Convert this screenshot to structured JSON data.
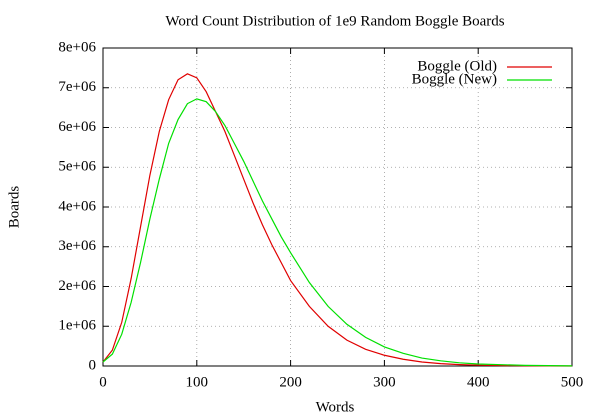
{
  "chart_data": {
    "type": "line",
    "title": "Word Count Distribution of 1e9 Random Boggle Boards",
    "x_label": "Words",
    "y_label": "Boards",
    "x": [
      0,
      10,
      20,
      30,
      40,
      50,
      60,
      70,
      80,
      90,
      100,
      110,
      120,
      130,
      140,
      150,
      160,
      170,
      180,
      190,
      200,
      220,
      240,
      260,
      280,
      300,
      320,
      340,
      360,
      380,
      400,
      450,
      500
    ],
    "series": [
      {
        "name": "Boggle (Old)",
        "color": "#e00000",
        "values": [
          100000,
          400000,
          1100000,
          2200000,
          3500000,
          4800000,
          5900000,
          6700000,
          7200000,
          7350000,
          7250000,
          6900000,
          6400000,
          5900000,
          5300000,
          4700000,
          4100000,
          3550000,
          3050000,
          2600000,
          2150000,
          1500000,
          1000000,
          650000,
          420000,
          270000,
          170000,
          100000,
          60000,
          35000,
          20000,
          5000,
          0
        ]
      },
      {
        "name": "Boggle (New)",
        "color": "#00e000",
        "values": [
          100000,
          300000,
          800000,
          1600000,
          2600000,
          3700000,
          4700000,
          5600000,
          6200000,
          6600000,
          6720000,
          6650000,
          6400000,
          6050000,
          5600000,
          5150000,
          4650000,
          4150000,
          3700000,
          3250000,
          2850000,
          2100000,
          1500000,
          1050000,
          720000,
          480000,
          320000,
          200000,
          130000,
          80000,
          50000,
          15000,
          3000
        ]
      }
    ],
    "xlim": [
      0,
      500
    ],
    "xticks": [
      0,
      100,
      200,
      300,
      400,
      500
    ],
    "ylim": [
      0,
      8000000
    ],
    "yticks": [
      0,
      {
        "value": 1000000,
        "label": "1e+06"
      },
      {
        "value": 2000000,
        "label": "2e+06"
      },
      {
        "value": 3000000,
        "label": "3e+06"
      },
      {
        "value": 4000000,
        "label": "4e+06"
      },
      {
        "value": 5000000,
        "label": "5e+06"
      },
      {
        "value": 6000000,
        "label": "6e+06"
      },
      {
        "value": 7000000,
        "label": "7e+06"
      },
      {
        "value": 8000000,
        "label": "8e+06"
      }
    ],
    "grid": true,
    "legend": "upper right"
  }
}
